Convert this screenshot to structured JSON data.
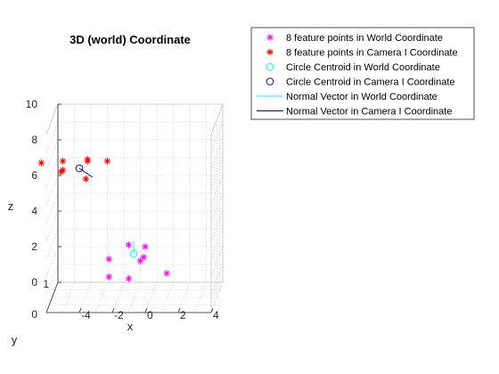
{
  "chart_data": {
    "type": "scatter",
    "title": "3D (world) Coordinate",
    "xlabel": "x",
    "ylabel": "y",
    "zlabel": "z",
    "xlim": [
      -6,
      4
    ],
    "ylim": [
      0,
      1
    ],
    "zlim": [
      0,
      10
    ],
    "grid": true,
    "view": "3d",
    "legend_position": "top-right",
    "x_ticks": [
      "-4",
      "-2",
      "0",
      "2",
      "4"
    ],
    "x_tick_values": [
      -4,
      -2,
      0,
      2,
      4
    ],
    "y_ticks": [
      "0",
      "1"
    ],
    "y_tick_values": [
      0,
      1
    ],
    "z_ticks": [
      "0",
      "2",
      "4",
      "6",
      "8",
      "10"
    ],
    "z_tick_values": [
      0,
      2,
      4,
      6,
      8,
      10
    ],
    "series": [
      {
        "name": "8 feature points in World Coordinate",
        "marker": "asterisk",
        "color": "#ff00ff",
        "points": [
          {
            "x": -1.0,
            "y": 0.0,
            "z": 3.8
          },
          {
            "x": 0.0,
            "y": 0.0,
            "z": 3.7
          },
          {
            "x": -2.2,
            "y": 0.0,
            "z": 3.0
          },
          {
            "x": -0.1,
            "y": 0.0,
            "z": 3.1
          },
          {
            "x": -2.2,
            "y": 0.0,
            "z": 2.0
          },
          {
            "x": -0.3,
            "y": 0.0,
            "z": 2.9
          },
          {
            "x": -1.0,
            "y": 0.0,
            "z": 1.9
          },
          {
            "x": 1.3,
            "y": 0.0,
            "z": 2.2
          }
        ]
      },
      {
        "name": "8 feature points in Camera I Coordinate",
        "marker": "asterisk",
        "color": "#ff0000",
        "points": [
          {
            "x": -5.0,
            "y": 0.0,
            "z": 8.5
          },
          {
            "x": -3.5,
            "y": 0.0,
            "z": 8.6
          },
          {
            "x": -3.5,
            "y": 0.0,
            "z": 8.5
          },
          {
            "x": -6.3,
            "y": 0.0,
            "z": 8.4
          },
          {
            "x": -2.3,
            "y": 0.0,
            "z": 8.5
          },
          {
            "x": -5.0,
            "y": 0.0,
            "z": 8.0
          },
          {
            "x": -5.1,
            "y": 0.0,
            "z": 7.9
          },
          {
            "x": -3.6,
            "y": 0.0,
            "z": 7.5
          }
        ]
      },
      {
        "name": "Circle Centroid in World Coordinate",
        "marker": "circle",
        "color": "#00ffff",
        "points": [
          {
            "x": -0.7,
            "y": 0.0,
            "z": 3.3
          }
        ]
      },
      {
        "name": "Circle Centroid in Camera I Coordinate",
        "marker": "circle",
        "color": "#0000ff",
        "points": [
          {
            "x": -4.0,
            "y": 0.0,
            "z": 8.1
          }
        ]
      },
      {
        "name": "Normal Vector in World Coordinate",
        "marker": "line",
        "color": "#00ffff",
        "segment": [
          {
            "x": -0.7,
            "y": 0.0,
            "z": 3.3
          },
          {
            "x": -0.7,
            "y": 0.0,
            "z": 4.0
          }
        ]
      },
      {
        "name": "Normal Vector in Camera I Coordinate",
        "marker": "line",
        "color": "#00008b",
        "segment": [
          {
            "x": -4.0,
            "y": 0.0,
            "z": 8.1
          },
          {
            "x": -3.2,
            "y": 0.0,
            "z": 7.6
          }
        ]
      }
    ]
  }
}
